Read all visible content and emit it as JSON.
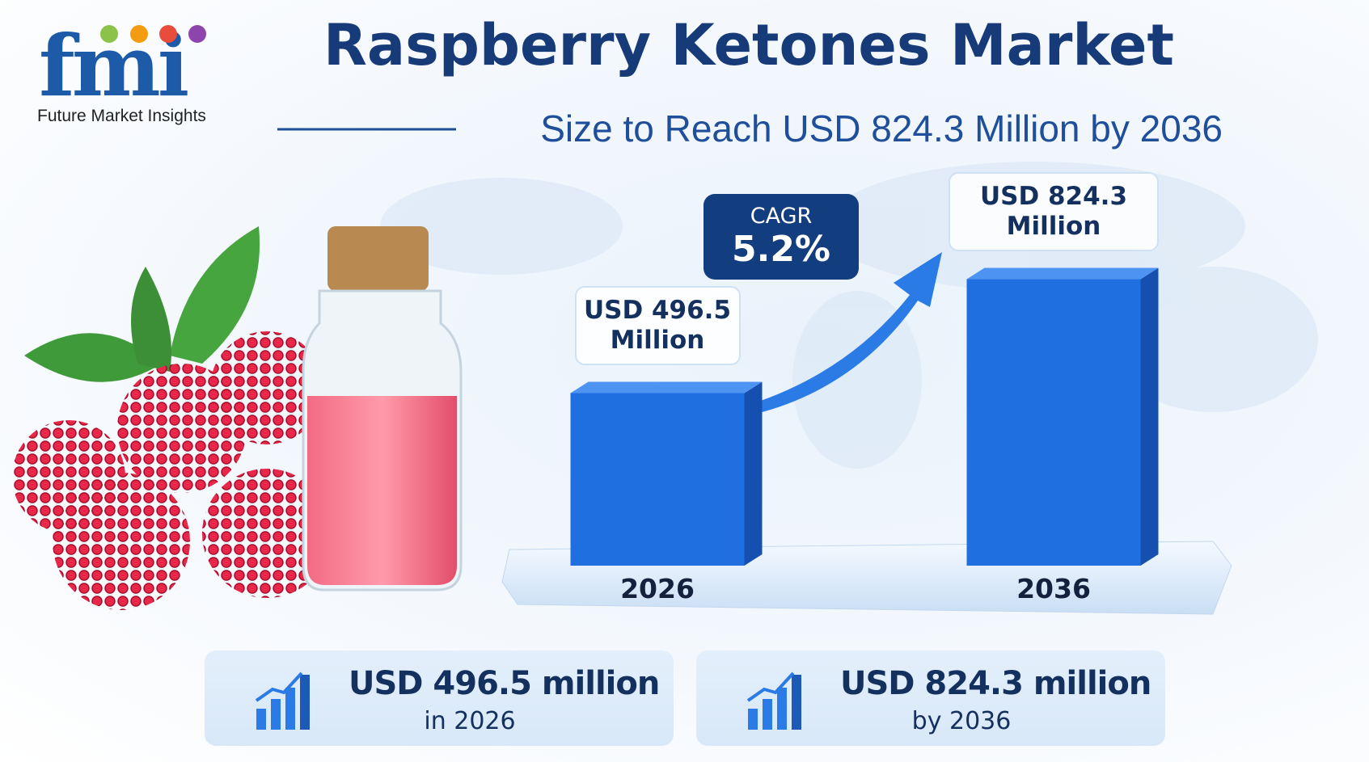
{
  "brand": {
    "logo": "fmi",
    "name": "Future Market Insights"
  },
  "chart_data": {
    "type": "bar",
    "title": "Raspberry Ketones Market",
    "subtitle": "Size to Reach USD 824.3 Million by 2036",
    "categories": [
      "2026",
      "2036"
    ],
    "values": [
      496.5,
      824.3
    ],
    "value_labels": [
      "USD 496.5 Million",
      "USD 824.3 Million"
    ],
    "color": "#1f6fe0",
    "annotation": {
      "label": "CAGR",
      "value": "5.2%"
    }
  },
  "cards": [
    {
      "value": "USD 496.5 million",
      "caption": "in 2026"
    },
    {
      "value": "USD 824.3 million",
      "caption": "by 2036"
    }
  ]
}
